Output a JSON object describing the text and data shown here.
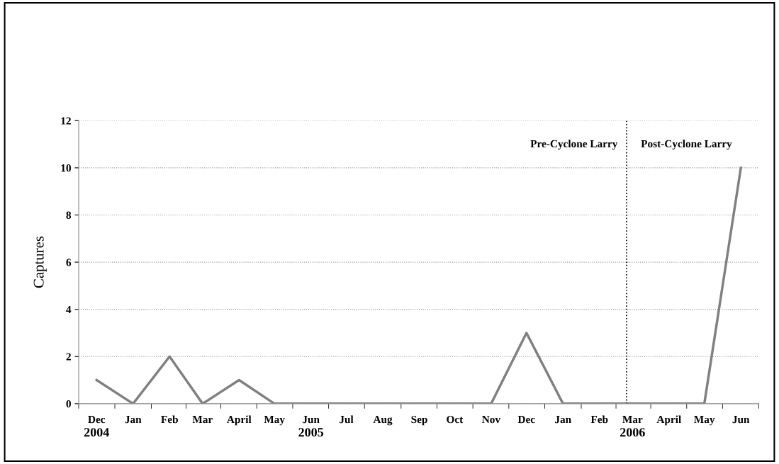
{
  "chart_data": {
    "type": "line",
    "ylabel": "Captures",
    "x": [
      "2004-12",
      "2005-01",
      "2005-02",
      "2005-03",
      "2005-04",
      "2005-05",
      "2005-06",
      "2005-07",
      "2005-08",
      "2005-09",
      "2005-10",
      "2005-11",
      "2005-12",
      "2006-01",
      "2006-02",
      "2006-03",
      "2006-04",
      "2006-05",
      "2006-06"
    ],
    "series": [
      {
        "color": "#808080",
        "values": [
          1,
          0,
          2,
          0,
          1,
          0,
          0,
          0,
          0,
          0,
          0,
          0,
          3,
          0,
          0,
          0,
          0,
          0,
          10
        ]
      }
    ],
    "xlim": [
      "2004-11-16",
      "2006-06-16"
    ],
    "xticks": [
      {
        "value": "2004-12",
        "label": "Dec"
      },
      {
        "value": "2005-01",
        "label": "Jan"
      },
      {
        "value": "2005-02",
        "label": "Feb"
      },
      {
        "value": "2005-03",
        "label": "Mar"
      },
      {
        "value": "2005-04",
        "label": "April"
      },
      {
        "value": "2005-05",
        "label": "May"
      },
      {
        "value": "2005-06",
        "label": "Jun"
      },
      {
        "value": "2005-07",
        "label": "Jul"
      },
      {
        "value": "2005-08",
        "label": "Aug"
      },
      {
        "value": "2005-09",
        "label": "Sep"
      },
      {
        "value": "2005-10",
        "label": "Oct"
      },
      {
        "value": "2005-11",
        "label": "Nov"
      },
      {
        "value": "2005-12",
        "label": "Dec"
      },
      {
        "value": "2006-01",
        "label": "Jan"
      },
      {
        "value": "2006-02",
        "label": "Feb"
      },
      {
        "value": "2006-03",
        "label": "Mar"
      },
      {
        "value": "2006-04",
        "label": "April"
      },
      {
        "value": "2006-05",
        "label": "May"
      },
      {
        "value": "2006-06",
        "label": "Jun"
      }
    ],
    "ylim": [
      0,
      12
    ],
    "yticks": [
      0,
      2,
      4,
      6,
      8,
      10,
      12
    ],
    "grid": "y",
    "marker": "none",
    "line_style": "solid",
    "legend": false,
    "ref_lines": [
      {
        "axis": "x",
        "value": "2006-02-24",
        "color": "#000000",
        "line_style": "dotted"
      }
    ],
    "annotations": [
      "Pre-Cyclone Larry",
      "Post-Cyclone Larry",
      "2004",
      "2005",
      "2006"
    ]
  }
}
